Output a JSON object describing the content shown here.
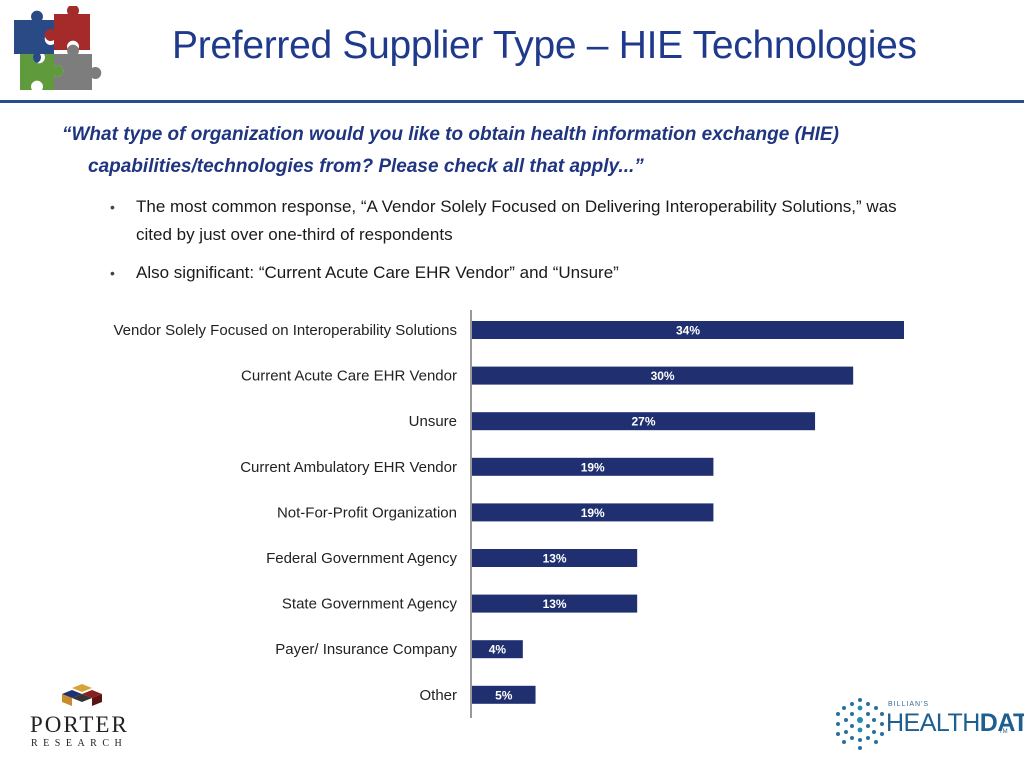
{
  "title": "Preferred Supplier Type – HIE Technologies",
  "question": "“What type of organization would you like to obtain health information exchange (HIE) capabilities/technologies from?  Please check all that apply...”",
  "bullets": [
    "The most common response, “A Vendor Solely Focused on Delivering Interoperability Solutions,” was cited by just over one-third of respondents",
    "Also significant:  “Current Acute Care EHR Vendor” and “Unsure”"
  ],
  "logos": {
    "porter_word": "PORTER",
    "porter_sub": "RESEARCH",
    "healthdata_small": "BILLIAN'S",
    "healthdata_health": "HEALTH",
    "healthdata_data": "DATA",
    "healthdata_tm": "TM"
  },
  "colors": {
    "title": "#1f3a8c",
    "bar": "#1f2f6f",
    "rule": "#2b4b8f"
  },
  "chart_data": {
    "type": "bar",
    "orientation": "horizontal",
    "categories": [
      "Vendor Solely Focused on Interoperability Solutions",
      "Current Acute Care EHR Vendor",
      "Unsure",
      "Current Ambulatory EHR Vendor",
      "Not-For-Profit Organization",
      "Federal Government Agency",
      "State Government Agency",
      "Payer/ Insurance Company",
      "Other"
    ],
    "values": [
      34,
      30,
      27,
      19,
      19,
      13,
      13,
      4,
      5
    ],
    "labels": [
      "34%",
      "30%",
      "27%",
      "19%",
      "19%",
      "13%",
      "13%",
      "4%",
      "5%"
    ],
    "xlim": [
      0,
      34
    ],
    "grid": false,
    "legend": "none"
  }
}
